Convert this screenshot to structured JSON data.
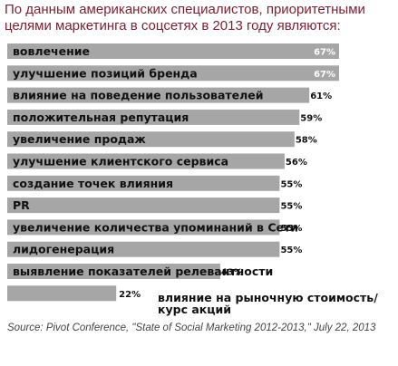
{
  "title": "По данным американских специалистов, приоритетными целями маркетинга в соцсетях в 2013 году являются:",
  "chart_data": {
    "type": "bar",
    "orientation": "horizontal",
    "categories": [
      "вовлечение",
      "улучшение позиций бренда",
      "влияние на поведение пользователей",
      "положительная репутация",
      "увеличение продаж",
      "улучшение клиентского сервиса",
      "создание точек влияния",
      "PR",
      "увеличение количества упоминаний в Сети",
      "лидогенерация",
      "выявление показателей релевантности",
      "влияние на рыночную стоимость/ курс акций"
    ],
    "values": [
      67,
      67,
      61,
      59,
      58,
      56,
      55,
      55,
      55,
      55,
      43,
      22
    ],
    "value_labels": [
      "67%",
      "67%",
      "61%",
      "59%",
      "58%",
      "56%",
      "55%",
      "55%",
      "55%",
      "55%",
      "43%",
      "22%"
    ],
    "unit": "%",
    "bar_color": "#a6a6a6",
    "xlim": [
      0,
      67
    ],
    "grid": false,
    "legend": "none"
  },
  "note_last": [
    "влияние на рыночную стоимость/",
    "курс акций"
  ],
  "source": "Source: Pivot Conference, \"State of Social Marketing 2012-2013,\" July 22, 2013",
  "colors": {
    "title": "#7a2233",
    "bar": "#a6a6a6",
    "text": "#111111",
    "source": "#444444"
  }
}
